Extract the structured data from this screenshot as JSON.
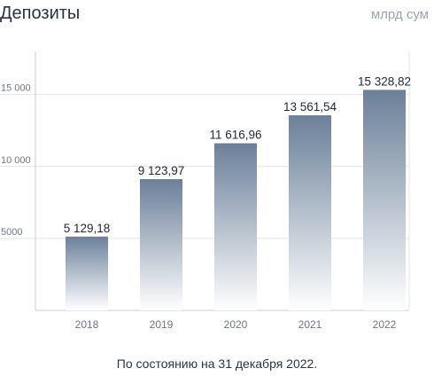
{
  "header": {
    "title": "Депозиты",
    "unit": "млрд сум"
  },
  "footnote": "По состоянию на 31 декабря 2022.",
  "colors": {
    "bar_top": "#6b8099",
    "bar_bottom": "#ffffff",
    "grid": "#e1e4e8",
    "axis": "#c9ced4"
  },
  "chart_data": {
    "type": "bar",
    "title": "Депозиты",
    "unit": "млрд сум",
    "categories": [
      "2018",
      "2019",
      "2020",
      "2021",
      "2022"
    ],
    "values": [
      5129.18,
      9123.97,
      11616.96,
      13561.54,
      15328.82
    ],
    "value_labels": [
      "5 129,18",
      "9 123,97",
      "11 616,96",
      "13 561,54",
      "15 328,82"
    ],
    "yticks": [
      5000,
      10000,
      15000
    ],
    "ytick_labels": [
      "5000",
      "10 000",
      "15 000"
    ],
    "ylim": [
      0,
      18000
    ],
    "grid": true
  }
}
